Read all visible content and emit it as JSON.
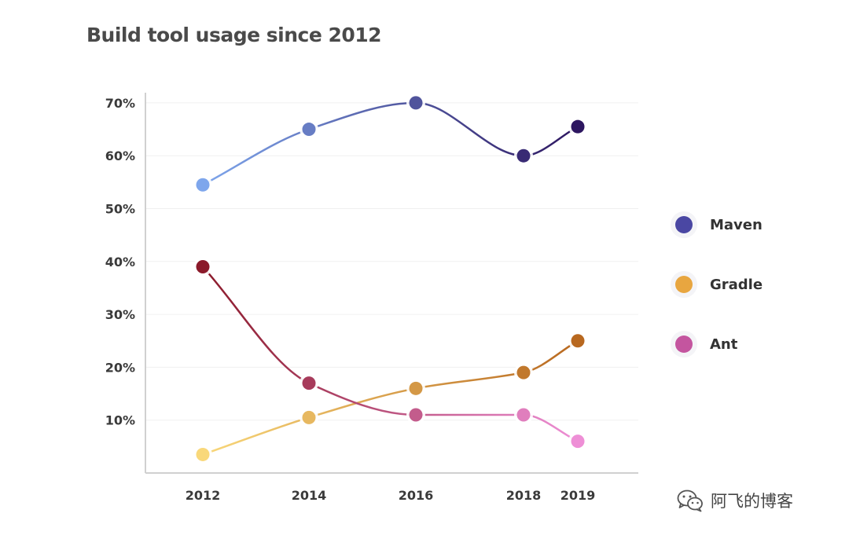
{
  "chart_data": {
    "type": "line",
    "title": "Build tool usage since 2012",
    "xlabel": "",
    "ylabel": "",
    "x": [
      2012,
      2014,
      2016,
      2018,
      2019
    ],
    "x_tick_labels": [
      "2012",
      "2014",
      "2016",
      "2018",
      "2019"
    ],
    "y_ticks": [
      10,
      20,
      30,
      40,
      50,
      60,
      70
    ],
    "y_tick_labels": [
      "10%",
      "20%",
      "30%",
      "40%",
      "50%",
      "60%",
      "70%"
    ],
    "ylim": [
      0,
      70
    ],
    "grid": true,
    "legend_position": "right",
    "series": [
      {
        "name": "Maven",
        "values": [
          54.5,
          65,
          70,
          60,
          65.5
        ],
        "color": "#4a47a3",
        "gradient": [
          "#7ea6ec",
          "#2d1660"
        ]
      },
      {
        "name": "Gradle",
        "values": [
          3.5,
          10.5,
          16,
          19,
          25
        ],
        "color": "#e8a640",
        "gradient": [
          "#f9d87a",
          "#b8681f"
        ]
      },
      {
        "name": "Ant",
        "values": [
          39,
          17,
          11,
          11,
          6
        ],
        "color": "#c4559f",
        "gradient": [
          "#8b1a2a",
          "#ee8fd6"
        ]
      }
    ]
  },
  "watermark": {
    "text": "阿飞的博客",
    "icon": "wechat-icon"
  }
}
